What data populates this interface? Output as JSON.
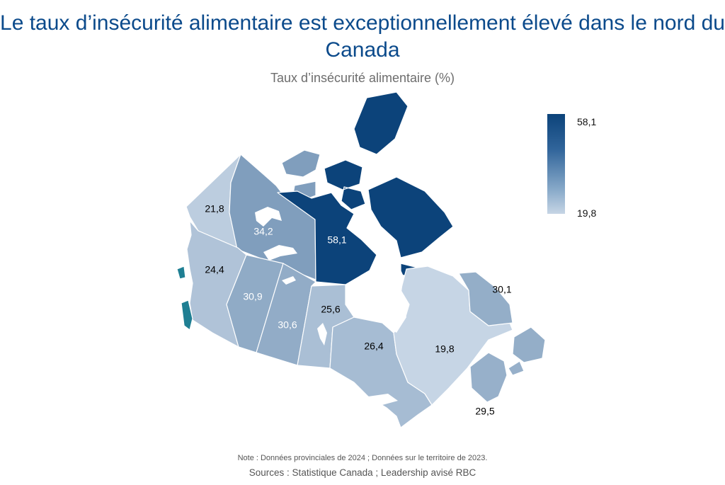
{
  "title": "Le taux d’insécurité alimentaire est exceptionnellement élevé dans le nord du Canada",
  "subtitle": "Taux d’insécurité alimentaire (%)",
  "legend": {
    "max_label": "58,1",
    "min_label": "19,8",
    "max_value": 58.1,
    "min_value": 19.8
  },
  "colors": {
    "title": "#0b4a8b",
    "low": "#c6d5e5",
    "high": "#0c437a"
  },
  "regions": [
    {
      "name": "Yukon",
      "value_label": "21,8",
      "value": 21.8
    },
    {
      "name": "Northwest Territories",
      "value_label": "34,2",
      "value": 34.2
    },
    {
      "name": "Nunavut",
      "value_label": "58,1",
      "value": 58.1
    },
    {
      "name": "British Columbia",
      "value_label": "24,4",
      "value": 24.4
    },
    {
      "name": "Alberta",
      "value_label": "30,9",
      "value": 30.9
    },
    {
      "name": "Saskatchewan",
      "value_label": "30,6",
      "value": 30.6
    },
    {
      "name": "Manitoba",
      "value_label": "25,6",
      "value": 25.6
    },
    {
      "name": "Ontario",
      "value_label": "26,4",
      "value": 26.4
    },
    {
      "name": "Quebec",
      "value_label": "19,8",
      "value": 19.8
    },
    {
      "name": "Newfoundland and Labrador",
      "value_label": "30,1",
      "value": 30.1
    },
    {
      "name": "Maritimes",
      "value_label": "29,5",
      "value": 29.5
    }
  ],
  "footer": {
    "note": "Note : Données provinciales de 2024 ; Données sur le territoire de 2023.",
    "sources": "Sources : Statistique Canada ; Leadership avisé RBC"
  }
}
